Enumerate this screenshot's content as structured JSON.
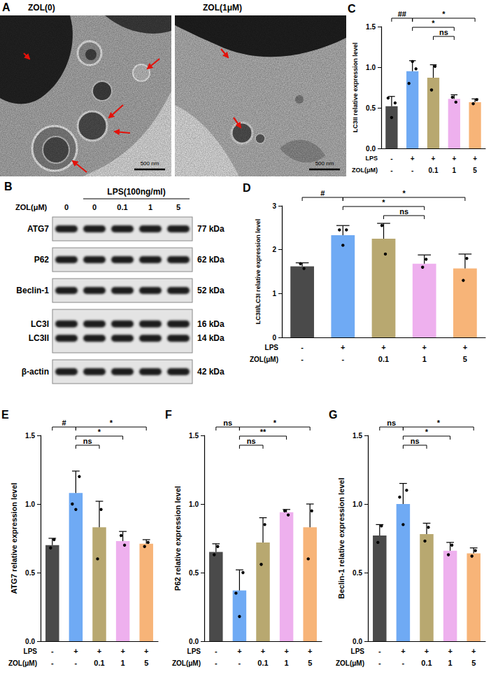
{
  "tem_panel": {
    "panel": "A",
    "images": [
      {
        "label": "ZOL(0)",
        "scale_bar": "500 nm"
      },
      {
        "label": "ZOL(1μM)",
        "scale_bar": "500 nm"
      }
    ]
  },
  "blot_panel": {
    "panel": "B",
    "row_label": "ZOL(μM)",
    "group_label": "LPS(100ng/ml)",
    "lanes": [
      "0",
      "0",
      "0.1",
      "1",
      "5"
    ],
    "blots": [
      {
        "bands": [
          {
            "protein": "ATG7",
            "mw": "77 kDa"
          }
        ]
      },
      {
        "bands": [
          {
            "protein": "P62",
            "mw": "62 kDa"
          }
        ]
      },
      {
        "bands": [
          {
            "protein": "Beclin-1",
            "mw": "52 kDa"
          }
        ]
      },
      {
        "bands": [
          {
            "protein": "LC3I",
            "mw": "16 kDa"
          },
          {
            "protein": "LC3II",
            "mw": "14 kDa"
          }
        ]
      },
      {
        "bands": [
          {
            "protein": "β-actin",
            "mw": "42 kDa"
          }
        ]
      }
    ]
  },
  "chart_data": [
    {
      "type": "bar",
      "panel": "C",
      "y_label": "LC3II relative expression level",
      "categories": [
        null,
        null,
        null,
        null,
        null
      ],
      "values": [
        0.52,
        0.95,
        0.87,
        0.61,
        0.57
      ],
      "errors": [
        0.12,
        0.13,
        0.16,
        0.05,
        0.04
      ],
      "points": [
        [
          0.62,
          0.38,
          0.56
        ],
        [
          0.8,
          1.07,
          0.98
        ],
        [
          0.72,
          1.01
        ],
        [
          0.63,
          0.57
        ],
        [
          0.55,
          0.6
        ]
      ],
      "colors": [
        "#4a4a4a",
        "#6faaf4",
        "#b8a870",
        "#eeb0ee",
        "#f7b478"
      ],
      "ylim": [
        0,
        1.5
      ],
      "yticks": [
        {
          "value": 0,
          "label": "0.0"
        },
        0.5,
        {
          "value": 1,
          "label": "1.0"
        },
        1.5
      ],
      "grid": false,
      "x_rows": [
        {
          "label": "LPS",
          "values": [
            "-",
            "+",
            "+",
            "+",
            "+"
          ]
        },
        {
          "label": "ZOL(μM)",
          "values": [
            "-",
            "-",
            "0.1",
            "1",
            "5"
          ]
        }
      ],
      "significance": [
        {
          "from": 0,
          "to": 1,
          "label": "##"
        },
        {
          "from": 1,
          "to": 4,
          "label": "*"
        },
        {
          "from": 1,
          "to": 3,
          "label": "*"
        },
        {
          "from": 2,
          "to": 3,
          "label": "ns"
        }
      ]
    },
    {
      "type": "bar",
      "panel": "D",
      "y_label": "LC3II/LC3I relative expression level",
      "categories": [
        null,
        null,
        null,
        null,
        null
      ],
      "values": [
        1.62,
        2.33,
        2.25,
        1.68,
        1.57
      ],
      "errors": [
        0.08,
        0.22,
        0.35,
        0.2,
        0.33
      ],
      "points": [
        [
          1.68,
          1.57
        ],
        [
          2.45,
          2.1,
          2.45
        ],
        [
          2.55,
          1.9
        ],
        [
          1.6,
          1.78
        ],
        [
          1.3,
          1.8
        ]
      ],
      "colors": [
        "#4a4a4a",
        "#6faaf4",
        "#b8a870",
        "#eeb0ee",
        "#f7b478"
      ],
      "ylim": [
        0,
        3
      ],
      "yticks": [
        0,
        1,
        2,
        3
      ],
      "grid": false,
      "x_rows": [
        {
          "label": "LPS",
          "values": [
            "-",
            "+",
            "+",
            "+",
            "+"
          ]
        },
        {
          "label": "ZOL(μM)",
          "values": [
            "-",
            "-",
            "0.1",
            "1",
            "5"
          ]
        }
      ],
      "significance": [
        {
          "from": 0,
          "to": 1,
          "label": "#"
        },
        {
          "from": 1,
          "to": 4,
          "label": "*"
        },
        {
          "from": 1,
          "to": 3,
          "label": "*"
        },
        {
          "from": 2,
          "to": 3,
          "label": "ns"
        }
      ]
    },
    {
      "type": "bar",
      "panel": "E",
      "y_label": "ATG7 relative expression level",
      "categories": [
        null,
        null,
        null,
        null,
        null
      ],
      "values": [
        0.7,
        1.08,
        0.83,
        0.73,
        0.71
      ],
      "errors": [
        0.05,
        0.16,
        0.19,
        0.07,
        0.03
      ],
      "points": [
        [
          0.68,
          0.74
        ],
        [
          1.0,
          0.96,
          1.2
        ],
        [
          0.6,
          0.96
        ],
        [
          0.77,
          0.7
        ],
        [
          0.69,
          0.72
        ]
      ],
      "colors": [
        "#4a4a4a",
        "#6faaf4",
        "#b8a870",
        "#eeb0ee",
        "#f7b478"
      ],
      "ylim": [
        0,
        1.5
      ],
      "yticks": [
        {
          "value": 0,
          "label": "0.0"
        },
        0.5,
        {
          "value": 1,
          "label": "1.0"
        },
        1.5
      ],
      "grid": false,
      "x_rows": [
        {
          "label": "LPS",
          "values": [
            "-",
            "+",
            "+",
            "+",
            "+"
          ]
        },
        {
          "label": "ZOL(μM)",
          "values": [
            "-",
            "-",
            "0.1",
            "1",
            "5"
          ]
        }
      ],
      "significance": [
        {
          "from": 0,
          "to": 1,
          "label": "#"
        },
        {
          "from": 1,
          "to": 4,
          "label": "*"
        },
        {
          "from": 1,
          "to": 3,
          "label": "*"
        },
        {
          "from": 1,
          "to": 2,
          "label": "ns"
        }
      ]
    },
    {
      "type": "bar",
      "panel": "F",
      "y_label": "P62 relative expression level",
      "categories": [
        null,
        null,
        null,
        null,
        null
      ],
      "values": [
        0.65,
        0.37,
        0.72,
        0.94,
        0.83
      ],
      "errors": [
        0.06,
        0.15,
        0.18,
        0.02,
        0.17
      ],
      "points": [
        [
          0.63,
          0.69
        ],
        [
          0.35,
          0.18,
          0.5
        ],
        [
          0.56,
          0.85
        ],
        [
          0.95,
          0.92
        ],
        [
          0.6,
          0.95
        ]
      ],
      "colors": [
        "#4a4a4a",
        "#6faaf4",
        "#b8a870",
        "#eeb0ee",
        "#f7b478"
      ],
      "ylim": [
        0,
        1.5
      ],
      "yticks": [
        {
          "value": 0,
          "label": "0.0"
        },
        0.5,
        {
          "value": 1,
          "label": "1.0"
        },
        1.5
      ],
      "grid": false,
      "x_rows": [
        {
          "label": "LPS",
          "values": [
            "-",
            "+",
            "+",
            "+",
            "+"
          ]
        },
        {
          "label": "ZOL(μM)",
          "values": [
            "-",
            "-",
            "0.1",
            "1",
            "5"
          ]
        }
      ],
      "significance": [
        {
          "from": 0,
          "to": 1,
          "label": "ns"
        },
        {
          "from": 1,
          "to": 4,
          "label": "*"
        },
        {
          "from": 1,
          "to": 3,
          "label": "**"
        },
        {
          "from": 1,
          "to": 2,
          "label": "ns"
        }
      ]
    },
    {
      "type": "bar",
      "panel": "G",
      "y_label": "Beclin-1 relative expression level",
      "categories": [
        null,
        null,
        null,
        null,
        null
      ],
      "values": [
        0.77,
        1.0,
        0.78,
        0.66,
        0.64
      ],
      "errors": [
        0.08,
        0.15,
        0.08,
        0.06,
        0.04
      ],
      "points": [
        [
          0.72,
          0.84
        ],
        [
          1.05,
          0.85,
          1.1
        ],
        [
          0.73,
          0.83
        ],
        [
          0.63,
          0.7
        ],
        [
          0.62,
          0.66
        ]
      ],
      "colors": [
        "#4a4a4a",
        "#6faaf4",
        "#b8a870",
        "#eeb0ee",
        "#f7b478"
      ],
      "ylim": [
        0,
        1.5
      ],
      "yticks": [
        {
          "value": 0,
          "label": "0.0"
        },
        0.5,
        {
          "value": 1,
          "label": "1.0"
        },
        1.5
      ],
      "grid": false,
      "x_rows": [
        {
          "label": "LPS",
          "values": [
            "-",
            "+",
            "+",
            "+",
            "+"
          ]
        },
        {
          "label": "ZOL(μM)",
          "values": [
            "-",
            "-",
            "0.1",
            "1",
            "5"
          ]
        }
      ],
      "significance": [
        {
          "from": 0,
          "to": 1,
          "label": "ns"
        },
        {
          "from": 1,
          "to": 4,
          "label": "*"
        },
        {
          "from": 1,
          "to": 3,
          "label": "*"
        },
        {
          "from": 1,
          "to": 2,
          "label": "ns"
        }
      ]
    }
  ]
}
